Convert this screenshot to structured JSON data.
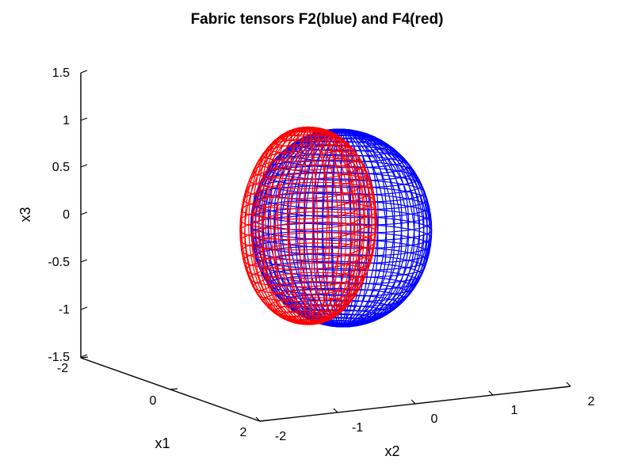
{
  "chart_data": {
    "type": "3d-surface-mesh",
    "title": "Fabric tensors F2(blue) and F4(red)",
    "xlabel": "x1",
    "ylabel": "x2",
    "zlabel": "x3",
    "xlim": [
      -2,
      2
    ],
    "ylim": [
      -2,
      2
    ],
    "zlim": [
      -1.5,
      1.5
    ],
    "x_ticks": [
      "-2",
      "0",
      "2"
    ],
    "y_ticks": [
      "-2",
      "-1",
      "0",
      "1",
      "2"
    ],
    "z_ticks": [
      "1.5",
      "1",
      "0.5",
      "0",
      "-0.5",
      "-1",
      "-1.5"
    ],
    "grid": false,
    "series": [
      {
        "color": "#0000ff",
        "shape": "ellipsoid",
        "semi_axes": [
          1.0,
          1.1,
          1.05
        ]
      },
      {
        "color": "#ff0000",
        "shape": "lobed surface",
        "semi_axes": [
          0.95,
          0.85,
          1.05
        ]
      }
    ]
  }
}
